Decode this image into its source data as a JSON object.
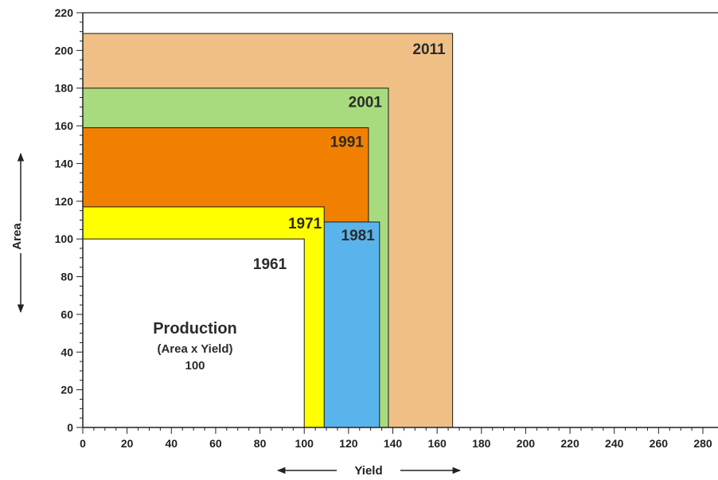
{
  "chart_data": {
    "type": "area",
    "xlabel": "Yield",
    "ylabel": "Area",
    "xlim": [
      0,
      280
    ],
    "ylim": [
      0,
      220
    ],
    "x_ticks": [
      "0",
      "20",
      "40",
      "60",
      "80",
      "100",
      "120",
      "140",
      "160",
      "180",
      "200",
      "220",
      "240",
      "260",
      "280"
    ],
    "y_ticks": [
      "0",
      "20",
      "40",
      "60",
      "80",
      "100",
      "120",
      "140",
      "160",
      "180",
      "200",
      "220"
    ],
    "series": [
      {
        "name": "2011",
        "yield": 167,
        "area": 209,
        "color": "#f0bf85"
      },
      {
        "name": "2001",
        "yield": 138,
        "area": 180,
        "color": "#a8db7e"
      },
      {
        "name": "1991",
        "yield": 129,
        "area": 159,
        "color": "#f28000"
      },
      {
        "name": "1981",
        "yield": 134,
        "area": 109,
        "color": "#5ab4ec"
      },
      {
        "name": "1971",
        "yield": 109,
        "area": 117,
        "color": "#ffff00"
      },
      {
        "name": "1961",
        "yield": 100,
        "area": 100,
        "color": "#ffffff"
      }
    ],
    "annotation": {
      "title": "Production",
      "subtitle": "(Area x Yield)",
      "value": "100"
    }
  }
}
